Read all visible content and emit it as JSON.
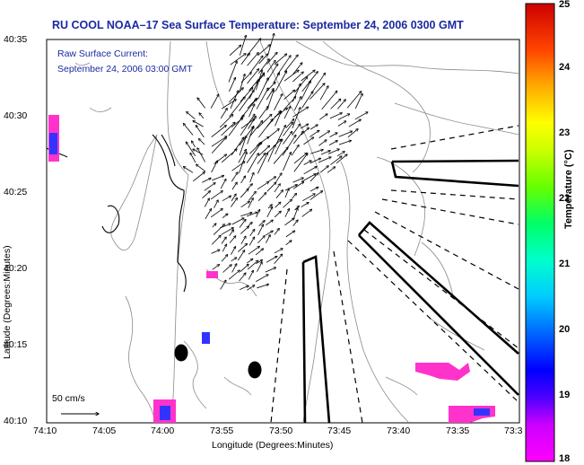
{
  "title": "RU COOL  NOAA–17  Sea Surface Temperature:  September 24, 2006 0300 GMT",
  "current_label_1": "Raw Surface Current:",
  "current_label_2": "September 24, 2006 03:00 GMT",
  "scale_label": "50 cm/s",
  "x_axis": {
    "label": "Longitude (Degrees:Minutes)",
    "ticks": [
      "74:10",
      "74:05",
      "74:00",
      "73:55",
      "73:50",
      "73:45",
      "73:40",
      "73:35",
      "73:3"
    ]
  },
  "y_axis": {
    "label": "Latitude (Degrees:Minutes)",
    "ticks": [
      "40:35",
      "40:30",
      "40:25",
      "40:20",
      "40:15",
      "40:10"
    ]
  },
  "colorbar": {
    "title": "Temperature (°C)",
    "ticks": [
      "25",
      "24",
      "23",
      "22",
      "21",
      "20",
      "19",
      "18"
    ],
    "range": [
      18,
      25
    ]
  },
  "colors": {
    "title_text": "#1a2aa0",
    "land_sst_missing": "#ffffff",
    "warm_patch": "#ff33cc",
    "cool_patch": "#3333ff"
  }
}
